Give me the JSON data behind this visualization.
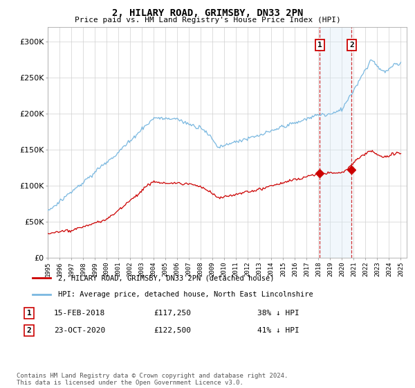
{
  "title": "2, HILARY ROAD, GRIMSBY, DN33 2PN",
  "subtitle": "Price paid vs. HM Land Registry's House Price Index (HPI)",
  "legend_label1": "2, HILARY ROAD, GRIMSBY, DN33 2PN (detached house)",
  "legend_label2": "HPI: Average price, detached house, North East Lincolnshire",
  "transaction1_date": "15-FEB-2018",
  "transaction1_price": "£117,250",
  "transaction1_hpi": "38% ↓ HPI",
  "transaction2_date": "23-OCT-2020",
  "transaction2_price": "£122,500",
  "transaction2_hpi": "41% ↓ HPI",
  "footnote": "Contains HM Land Registry data © Crown copyright and database right 2024.\nThis data is licensed under the Open Government Licence v3.0.",
  "hpi_color": "#7ab8e0",
  "price_color": "#cc0000",
  "marker_color": "#cc0000",
  "highlight_color": "#d8eaf7",
  "transaction1_x": 2018.12,
  "transaction2_x": 2020.82,
  "xmin": 1995.0,
  "xmax": 2025.5,
  "ymin": 0,
  "ymax": 320000
}
